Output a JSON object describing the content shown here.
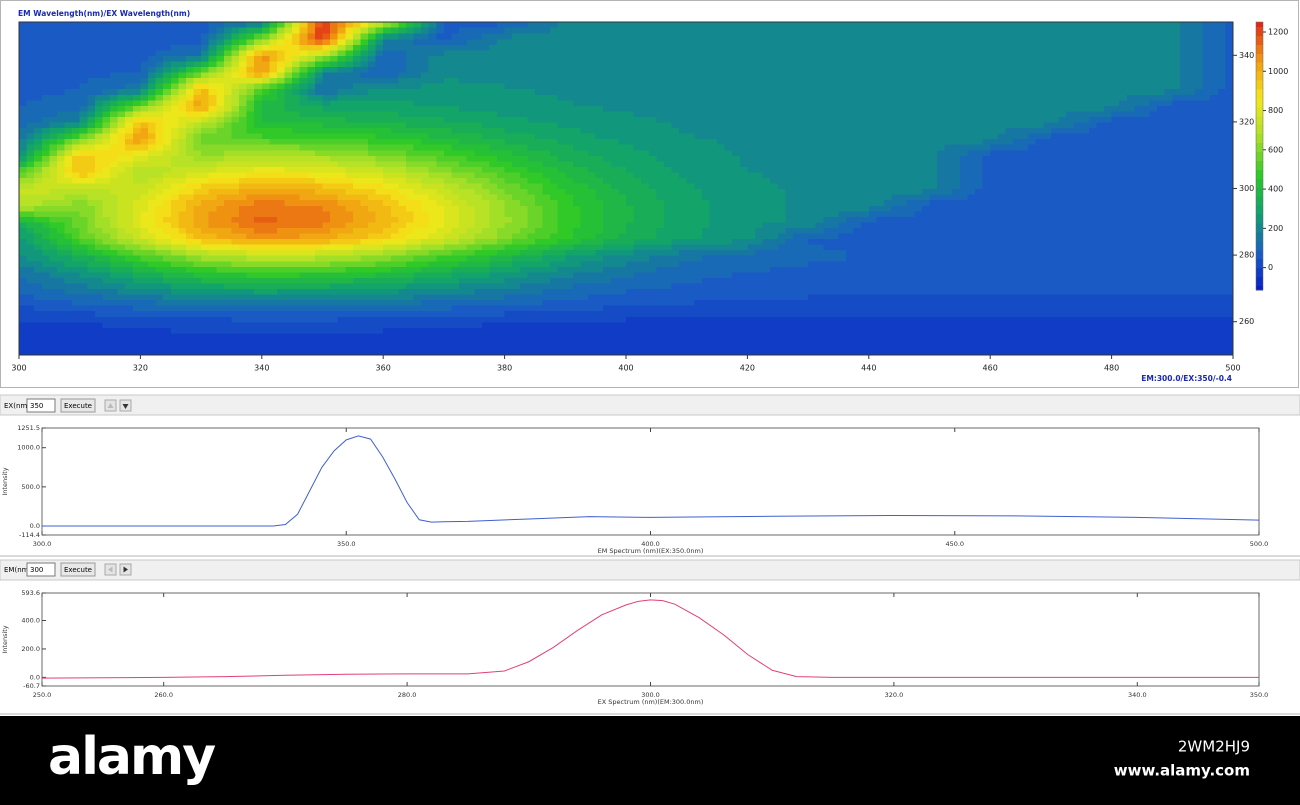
{
  "chart_data": [
    {
      "type": "contour",
      "title": "EM Wavelength(nm)/EX Wavelength(nm)",
      "status": "EM:300.0/EX:350/-0.4",
      "x": [
        300,
        310,
        320,
        330,
        340,
        350,
        360,
        370,
        380,
        390,
        400,
        410,
        420,
        430,
        440,
        450,
        460,
        470,
        480,
        490,
        500
      ],
      "y": [
        250,
        255,
        260,
        265,
        270,
        275,
        280,
        285,
        290,
        295,
        300,
        305,
        310,
        315,
        320,
        325,
        330,
        335,
        340,
        345,
        350
      ],
      "z": [
        [
          -30,
          -30,
          -30,
          -30,
          -30,
          -30,
          -30,
          -30,
          -30,
          -30,
          -30,
          -30,
          -30,
          -30,
          -30,
          -30,
          -30,
          -30,
          -30,
          -30,
          -30
        ],
        [
          -30,
          -20,
          -20,
          -10,
          -10,
          -10,
          -20,
          -20,
          -20,
          -30,
          -30,
          -30,
          -30,
          -30,
          -30,
          -30,
          -30,
          -30,
          -30,
          -30,
          -30
        ],
        [
          -10,
          0,
          10,
          20,
          30,
          30,
          20,
          10,
          0,
          -10,
          -10,
          -20,
          -20,
          -20,
          -20,
          -20,
          -20,
          -20,
          -20,
          -20,
          -20
        ],
        [
          50,
          80,
          110,
          140,
          150,
          140,
          130,
          110,
          90,
          70,
          50,
          40,
          30,
          30,
          30,
          30,
          30,
          30,
          30,
          30,
          30
        ],
        [
          110,
          160,
          220,
          280,
          300,
          290,
          260,
          220,
          180,
          130,
          100,
          80,
          70,
          60,
          60,
          60,
          60,
          60,
          60,
          60,
          60
        ],
        [
          150,
          240,
          350,
          450,
          500,
          480,
          430,
          350,
          270,
          200,
          150,
          110,
          90,
          80,
          70,
          70,
          70,
          70,
          70,
          70,
          70
        ],
        [
          220,
          350,
          520,
          670,
          740,
          720,
          640,
          520,
          400,
          290,
          210,
          150,
          120,
          100,
          90,
          90,
          90,
          90,
          90,
          90,
          90
        ],
        [
          240,
          530,
          750,
          960,
          1050,
          1020,
          910,
          760,
          600,
          460,
          350,
          280,
          240,
          90,
          70,
          70,
          70,
          70,
          70,
          70,
          70
        ],
        [
          350,
          570,
          820,
          1040,
          1150,
          1110,
          990,
          830,
          650,
          490,
          370,
          290,
          240,
          220,
          70,
          70,
          70,
          70,
          70,
          70,
          70
        ],
        [
          710,
          600,
          800,
          1020,
          1120,
          1090,
          970,
          810,
          640,
          480,
          370,
          290,
          240,
          220,
          210,
          70,
          70,
          70,
          70,
          70,
          70
        ],
        [
          750,
          730,
          740,
          930,
          1010,
          980,
          880,
          740,
          590,
          450,
          350,
          280,
          240,
          220,
          210,
          200,
          70,
          70,
          70,
          70,
          70
        ],
        [
          530,
          970,
          680,
          780,
          860,
          830,
          750,
          630,
          510,
          400,
          320,
          260,
          230,
          210,
          200,
          200,
          70,
          70,
          70,
          70,
          70
        ],
        [
          210,
          950,
          820,
          640,
          680,
          660,
          600,
          520,
          430,
          350,
          290,
          250,
          220,
          210,
          200,
          200,
          70,
          70,
          70,
          70,
          70
        ],
        [
          140,
          580,
          1070,
          560,
          520,
          510,
          470,
          410,
          350,
          300,
          260,
          230,
          220,
          210,
          200,
          200,
          200,
          70,
          70,
          70,
          70
        ],
        [
          110,
          200,
          980,
          720,
          400,
          390,
          360,
          330,
          290,
          260,
          240,
          220,
          210,
          200,
          200,
          200,
          200,
          200,
          70,
          70,
          70
        ],
        [
          90,
          110,
          570,
          1050,
          390,
          300,
          290,
          270,
          250,
          230,
          220,
          210,
          200,
          200,
          200,
          200,
          200,
          200,
          200,
          70,
          70
        ],
        [
          80,
          90,
          160,
          990,
          520,
          130,
          240,
          240,
          230,
          220,
          210,
          200,
          200,
          200,
          200,
          200,
          200,
          200,
          200,
          200,
          70
        ],
        [
          80,
          80,
          90,
          550,
          1070,
          190,
          90,
          220,
          210,
          210,
          200,
          200,
          200,
          200,
          200,
          200,
          200,
          200,
          200,
          200,
          70
        ],
        [
          70,
          70,
          80,
          150,
          1080,
          680,
          90,
          210,
          200,
          200,
          200,
          200,
          200,
          200,
          200,
          200,
          200,
          200,
          200,
          200,
          70
        ],
        [
          70,
          70,
          70,
          70,
          610,
          1240,
          190,
          70,
          200,
          200,
          200,
          200,
          200,
          200,
          200,
          200,
          200,
          200,
          200,
          200,
          70
        ],
        [
          70,
          70,
          70,
          70,
          150,
          1240,
          760,
          80,
          70,
          200,
          200,
          200,
          200,
          200,
          200,
          200,
          200,
          200,
          200,
          200,
          70
        ]
      ],
      "xlim": [
        300,
        500
      ],
      "xticks": [
        300,
        320,
        340,
        360,
        380,
        400,
        420,
        440,
        460,
        480,
        500
      ],
      "ylim": [
        250,
        350
      ],
      "yticks": [
        260,
        280,
        300,
        320,
        340
      ],
      "yaxis_side": "right",
      "colorbar": {
        "lim": [
          -114,
          1251
        ],
        "ticks": [
          0,
          200,
          400,
          600,
          800,
          1000,
          1200
        ],
        "colors": [
          "#0a1ec8",
          "#1a5ec4",
          "#10a070",
          "#2cc828",
          "#a8e028",
          "#f4e818",
          "#f09a10",
          "#e02818"
        ]
      }
    },
    {
      "type": "line",
      "xlabel": "EM Spectrum (nm)(EX:350.0nm)",
      "ylabel": "Intensity",
      "xlim": [
        300,
        500
      ],
      "xticks": [
        {
          "value": 300,
          "label": "300.0"
        },
        {
          "value": 350,
          "label": "350.0"
        },
        {
          "value": 400,
          "label": "400.0"
        },
        {
          "value": 450,
          "label": "450.0"
        },
        {
          "value": 500,
          "label": "500.0"
        }
      ],
      "ylim": [
        -114.4,
        1251.5
      ],
      "yticks": [
        1251.5,
        {
          "value": 1000,
          "label": "1000.0"
        },
        {
          "value": 500,
          "label": "500.0"
        },
        {
          "value": 0,
          "label": "0.0"
        },
        -114.4
      ],
      "color": "#4060d0",
      "x": [
        300,
        310,
        320,
        330,
        338,
        340,
        342,
        344,
        346,
        348,
        350,
        352,
        354,
        356,
        358,
        360,
        362,
        364,
        366,
        370,
        380,
        390,
        400,
        420,
        440,
        460,
        480,
        500
      ],
      "values": [
        0,
        0,
        0,
        0,
        0,
        20,
        150,
        450,
        750,
        960,
        1100,
        1150,
        1110,
        880,
        600,
        300,
        80,
        50,
        55,
        60,
        90,
        120,
        110,
        125,
        135,
        130,
        110,
        75
      ]
    },
    {
      "type": "line",
      "xlabel": "EX Spectrum (nm)(EM:300.0nm)",
      "ylabel": "Intensity",
      "xlim": [
        250,
        350
      ],
      "xticks": [
        {
          "value": 250,
          "label": "250.0"
        },
        {
          "value": 260,
          "label": "260.0"
        },
        {
          "value": 280,
          "label": "280.0"
        },
        {
          "value": 300,
          "label": "300.0"
        },
        {
          "value": 320,
          "label": "320.0"
        },
        {
          "value": 340,
          "label": "340.0"
        },
        {
          "value": 350,
          "label": "350.0"
        }
      ],
      "ylim": [
        -60.7,
        593.6
      ],
      "yticks": [
        593.6,
        {
          "value": 400,
          "label": "400.0"
        },
        {
          "value": 200,
          "label": "200.0"
        },
        {
          "value": 0,
          "label": "0.0"
        },
        -60.7
      ],
      "color": "#e0407a",
      "x": [
        250,
        255,
        260,
        265,
        270,
        275,
        280,
        285,
        288,
        290,
        292,
        294,
        296,
        298,
        299,
        300,
        301,
        302,
        304,
        306,
        308,
        310,
        312,
        315,
        320,
        330,
        340,
        350
      ],
      "values": [
        -5,
        -3,
        0,
        5,
        15,
        22,
        25,
        25,
        45,
        110,
        210,
        330,
        440,
        510,
        535,
        545,
        540,
        515,
        420,
        300,
        160,
        50,
        5,
        0,
        0,
        0,
        0,
        0
      ]
    }
  ],
  "controls": [
    {
      "label": "EX(nm):",
      "input": "350",
      "button": "Execute"
    },
    {
      "label": "EM(nm):",
      "input": "300",
      "button": "Execute"
    }
  ],
  "watermark": {
    "logo": "alamy",
    "image_id": "2WM2HJ9",
    "url": "www.alamy.com"
  }
}
